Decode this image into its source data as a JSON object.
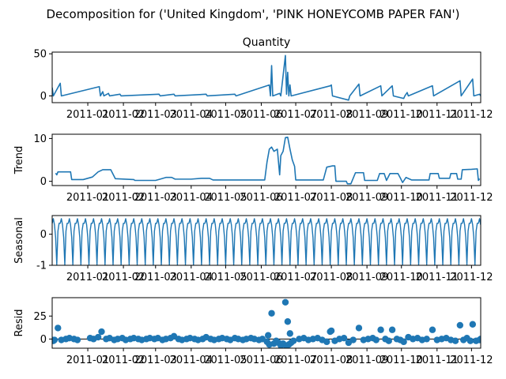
{
  "figure": {
    "suptitle": "Decomposition for ('United Kingdom', 'PINK  HONEYCOMB PAPER FAN')"
  },
  "colors": {
    "series": "#1f77b4",
    "axis": "#000000",
    "background": "#ffffff"
  },
  "x_axis": {
    "type": "date",
    "range": [
      "2010-12-01",
      "2011-12-09"
    ],
    "tick_dates": [
      "2011-01-01",
      "2011-02-01",
      "2011-03-01",
      "2011-04-01",
      "2011-05-01",
      "2011-06-01",
      "2011-07-01",
      "2011-08-01",
      "2011-09-01",
      "2011-10-01",
      "2011-11-01",
      "2011-12-01"
    ],
    "tick_labels": [
      "2011-01",
      "2011-02",
      "2011-03",
      "2011-04",
      "2011-05",
      "2011-06",
      "2011-07",
      "2011-08",
      "2011-09",
      "2011-10",
      "2011-11",
      "2011-12"
    ]
  },
  "chart_data": [
    {
      "type": "line",
      "title": "Quantity",
      "ylabel": "",
      "ylim": [
        -8,
        52
      ],
      "yticks": [
        0,
        50
      ],
      "grid": false,
      "baseline": 0,
      "points": [
        [
          "2010-12-01",
          10
        ],
        [
          "2010-12-02",
          0
        ],
        [
          "2010-12-08",
          15
        ],
        [
          "2010-12-09",
          0
        ],
        [
          "2011-01-11",
          11
        ],
        [
          "2011-01-12",
          0
        ],
        [
          "2011-01-14",
          5
        ],
        [
          "2011-01-15",
          0
        ],
        [
          "2011-01-19",
          3
        ],
        [
          "2011-01-20",
          0
        ],
        [
          "2011-01-29",
          2
        ],
        [
          "2011-01-30",
          0
        ],
        [
          "2011-03-04",
          2
        ],
        [
          "2011-03-05",
          0
        ],
        [
          "2011-03-17",
          2
        ],
        [
          "2011-03-18",
          0
        ],
        [
          "2011-04-14",
          2
        ],
        [
          "2011-04-15",
          0
        ],
        [
          "2011-05-09",
          2
        ],
        [
          "2011-05-10",
          0
        ],
        [
          "2011-06-08",
          13
        ],
        [
          "2011-06-09",
          0
        ],
        [
          "2011-06-10",
          36
        ],
        [
          "2011-06-11",
          0
        ],
        [
          "2011-06-17",
          3
        ],
        [
          "2011-06-18",
          0
        ],
        [
          "2011-06-22",
          48
        ],
        [
          "2011-06-23",
          2
        ],
        [
          "2011-06-24",
          28
        ],
        [
          "2011-06-25",
          0
        ],
        [
          "2011-06-26",
          13
        ],
        [
          "2011-06-27",
          0
        ],
        [
          "2011-07-31",
          12
        ],
        [
          "2011-08-01",
          13
        ],
        [
          "2011-08-02",
          0
        ],
        [
          "2011-08-16",
          -5
        ],
        [
          "2011-08-17",
          0
        ],
        [
          "2011-08-25",
          14
        ],
        [
          "2011-08-26",
          0
        ],
        [
          "2011-09-13",
          12
        ],
        [
          "2011-09-14",
          0
        ],
        [
          "2011-09-23",
          12
        ],
        [
          "2011-09-24",
          0
        ],
        [
          "2011-10-03",
          -3
        ],
        [
          "2011-10-04",
          0
        ],
        [
          "2011-10-06",
          4
        ],
        [
          "2011-10-07",
          0
        ],
        [
          "2011-10-28",
          12
        ],
        [
          "2011-10-29",
          0
        ],
        [
          "2011-11-21",
          18
        ],
        [
          "2011-11-22",
          0
        ],
        [
          "2011-12-02",
          20
        ],
        [
          "2011-12-03",
          0
        ],
        [
          "2011-12-08",
          2
        ],
        [
          "2011-12-09",
          0
        ]
      ]
    },
    {
      "type": "line",
      "title": "",
      "ylabel": "Trend",
      "ylim": [
        -1,
        11
      ],
      "yticks": [
        0,
        10
      ],
      "grid": false,
      "points": [
        [
          "2010-12-04",
          1.9
        ],
        [
          "2010-12-05",
          1.5
        ],
        [
          "2010-12-06",
          2.2
        ],
        [
          "2010-12-17",
          2.2
        ],
        [
          "2010-12-18",
          0.4
        ],
        [
          "2010-12-28",
          0.4
        ],
        [
          "2011-01-05",
          1.0
        ],
        [
          "2011-01-10",
          2.2
        ],
        [
          "2011-01-14",
          2.7
        ],
        [
          "2011-01-21",
          2.7
        ],
        [
          "2011-01-25",
          0.6
        ],
        [
          "2011-02-10",
          0.4
        ],
        [
          "2011-02-11",
          0.2
        ],
        [
          "2011-03-01",
          0.2
        ],
        [
          "2011-03-05",
          0.5
        ],
        [
          "2011-03-10",
          0.9
        ],
        [
          "2011-03-15",
          0.9
        ],
        [
          "2011-03-18",
          0.5
        ],
        [
          "2011-04-01",
          0.5
        ],
        [
          "2011-04-10",
          0.7
        ],
        [
          "2011-04-17",
          0.7
        ],
        [
          "2011-04-20",
          0.3
        ],
        [
          "2011-05-15",
          0.3
        ],
        [
          "2011-05-25",
          0.3
        ],
        [
          "2011-06-04",
          0.3
        ],
        [
          "2011-06-06",
          4.5
        ],
        [
          "2011-06-08",
          7.5
        ],
        [
          "2011-06-10",
          8.0
        ],
        [
          "2011-06-12",
          7.0
        ],
        [
          "2011-06-15",
          7.5
        ],
        [
          "2011-06-17",
          1.5
        ],
        [
          "2011-06-18",
          6.0
        ],
        [
          "2011-06-20",
          7.0
        ],
        [
          "2011-06-22",
          10.2
        ],
        [
          "2011-06-24",
          10.3
        ],
        [
          "2011-06-26",
          7.5
        ],
        [
          "2011-06-28",
          5.0
        ],
        [
          "2011-06-30",
          3.5
        ],
        [
          "2011-07-01",
          0.3
        ],
        [
          "2011-07-25",
          0.3
        ],
        [
          "2011-07-28",
          3.3
        ],
        [
          "2011-08-02",
          3.6
        ],
        [
          "2011-08-04",
          3.6
        ],
        [
          "2011-08-05",
          0.0
        ],
        [
          "2011-08-14",
          0.0
        ],
        [
          "2011-08-15",
          -0.6
        ],
        [
          "2011-08-18",
          -0.6
        ],
        [
          "2011-08-22",
          2.0
        ],
        [
          "2011-08-29",
          2.0
        ],
        [
          "2011-08-30",
          0.2
        ],
        [
          "2011-09-10",
          0.2
        ],
        [
          "2011-09-12",
          1.8
        ],
        [
          "2011-09-16",
          1.8
        ],
        [
          "2011-09-18",
          0.2
        ],
        [
          "2011-09-21",
          1.8
        ],
        [
          "2011-09-28",
          1.8
        ],
        [
          "2011-09-30",
          0.8
        ],
        [
          "2011-10-02",
          -0.3
        ],
        [
          "2011-10-05",
          0.9
        ],
        [
          "2011-10-10",
          0.3
        ],
        [
          "2011-10-25",
          0.3
        ],
        [
          "2011-10-26",
          1.8
        ],
        [
          "2011-11-02",
          1.8
        ],
        [
          "2011-11-03",
          0.7
        ],
        [
          "2011-11-12",
          0.7
        ],
        [
          "2011-11-13",
          1.8
        ],
        [
          "2011-11-18",
          1.8
        ],
        [
          "2011-11-19",
          0.5
        ],
        [
          "2011-11-22",
          0.5
        ],
        [
          "2011-11-23",
          2.7
        ],
        [
          "2011-12-01",
          2.8
        ],
        [
          "2011-12-06",
          2.9
        ],
        [
          "2011-12-07",
          0.2
        ],
        [
          "2011-12-08",
          0.6
        ]
      ]
    },
    {
      "type": "line",
      "title": "",
      "ylabel": "Seasonal",
      "ylim": [
        -1.0,
        0.6
      ],
      "yticks": [
        -1,
        0
      ],
      "grid": false,
      "start_date": "2010-12-01",
      "end_date": "2011-12-09",
      "period_days": 7,
      "seasonal_pattern": [
        0.35,
        0.5,
        0.3,
        -0.1,
        -0.98,
        0.1,
        0.35
      ]
    },
    {
      "type": "scatter",
      "title": "",
      "ylabel": "Resid",
      "ylim": [
        -10,
        45
      ],
      "yticks": [
        0,
        25
      ],
      "grid": false,
      "baseline": 0,
      "points": [
        [
          "2010-12-01",
          -1
        ],
        [
          "2010-12-02",
          -2
        ],
        [
          "2010-12-03",
          -1
        ],
        [
          "2010-12-06",
          12
        ],
        [
          "2010-12-09",
          -1
        ],
        [
          "2010-12-13",
          0
        ],
        [
          "2010-12-16",
          1
        ],
        [
          "2010-12-20",
          0
        ],
        [
          "2010-12-23",
          -1
        ],
        [
          "2011-01-03",
          1
        ],
        [
          "2011-01-06",
          0
        ],
        [
          "2011-01-10",
          2
        ],
        [
          "2011-01-13",
          8
        ],
        [
          "2011-01-17",
          0
        ],
        [
          "2011-01-20",
          1
        ],
        [
          "2011-01-24",
          -1
        ],
        [
          "2011-01-27",
          0
        ],
        [
          "2011-01-31",
          1
        ],
        [
          "2011-02-03",
          -1
        ],
        [
          "2011-02-07",
          0
        ],
        [
          "2011-02-10",
          1
        ],
        [
          "2011-02-14",
          0
        ],
        [
          "2011-02-17",
          -1
        ],
        [
          "2011-02-21",
          0
        ],
        [
          "2011-02-24",
          1
        ],
        [
          "2011-02-28",
          0
        ],
        [
          "2011-03-03",
          1
        ],
        [
          "2011-03-07",
          -1
        ],
        [
          "2011-03-10",
          0
        ],
        [
          "2011-03-14",
          1
        ],
        [
          "2011-03-17",
          3
        ],
        [
          "2011-03-21",
          0
        ],
        [
          "2011-03-24",
          -1
        ],
        [
          "2011-03-28",
          0
        ],
        [
          "2011-03-31",
          1
        ],
        [
          "2011-04-04",
          0
        ],
        [
          "2011-04-07",
          -1
        ],
        [
          "2011-04-11",
          0
        ],
        [
          "2011-04-14",
          2
        ],
        [
          "2011-04-18",
          0
        ],
        [
          "2011-04-21",
          -1
        ],
        [
          "2011-04-25",
          0
        ],
        [
          "2011-04-28",
          1
        ],
        [
          "2011-05-02",
          0
        ],
        [
          "2011-05-05",
          -1
        ],
        [
          "2011-05-09",
          1
        ],
        [
          "2011-05-12",
          0
        ],
        [
          "2011-05-16",
          -1
        ],
        [
          "2011-05-19",
          0
        ],
        [
          "2011-05-23",
          1
        ],
        [
          "2011-05-26",
          0
        ],
        [
          "2011-05-30",
          -1
        ],
        [
          "2011-06-02",
          0
        ],
        [
          "2011-06-06",
          -3
        ],
        [
          "2011-06-07",
          4
        ],
        [
          "2011-06-08",
          -6
        ],
        [
          "2011-06-10",
          28
        ],
        [
          "2011-06-12",
          -5
        ],
        [
          "2011-06-14",
          -2
        ],
        [
          "2011-06-16",
          -4
        ],
        [
          "2011-06-18",
          -7
        ],
        [
          "2011-06-20",
          -5
        ],
        [
          "2011-06-22",
          40
        ],
        [
          "2011-06-23",
          -8
        ],
        [
          "2011-06-24",
          19
        ],
        [
          "2011-06-25",
          -6
        ],
        [
          "2011-06-26",
          6
        ],
        [
          "2011-06-27",
          -4
        ],
        [
          "2011-06-29",
          -2
        ],
        [
          "2011-07-04",
          0
        ],
        [
          "2011-07-08",
          1
        ],
        [
          "2011-07-12",
          -1
        ],
        [
          "2011-07-16",
          0
        ],
        [
          "2011-07-20",
          1
        ],
        [
          "2011-07-24",
          -1
        ],
        [
          "2011-07-28",
          -3
        ],
        [
          "2011-07-31",
          8
        ],
        [
          "2011-08-01",
          9
        ],
        [
          "2011-08-04",
          -2
        ],
        [
          "2011-08-08",
          0
        ],
        [
          "2011-08-12",
          1
        ],
        [
          "2011-08-16",
          -4
        ],
        [
          "2011-08-20",
          -1
        ],
        [
          "2011-08-25",
          12
        ],
        [
          "2011-08-29",
          -1
        ],
        [
          "2011-09-02",
          0
        ],
        [
          "2011-09-06",
          1
        ],
        [
          "2011-09-09",
          -1
        ],
        [
          "2011-09-13",
          10
        ],
        [
          "2011-09-17",
          0
        ],
        [
          "2011-09-20",
          -2
        ],
        [
          "2011-09-23",
          10
        ],
        [
          "2011-09-27",
          0
        ],
        [
          "2011-09-30",
          -1
        ],
        [
          "2011-10-03",
          -3
        ],
        [
          "2011-10-07",
          2
        ],
        [
          "2011-10-11",
          0
        ],
        [
          "2011-10-15",
          1
        ],
        [
          "2011-10-19",
          -1
        ],
        [
          "2011-10-23",
          0
        ],
        [
          "2011-10-28",
          10
        ],
        [
          "2011-11-01",
          -1
        ],
        [
          "2011-11-05",
          0
        ],
        [
          "2011-11-09",
          1
        ],
        [
          "2011-11-13",
          -1
        ],
        [
          "2011-11-17",
          -2
        ],
        [
          "2011-11-21",
          15
        ],
        [
          "2011-11-24",
          -1
        ],
        [
          "2011-11-27",
          1
        ],
        [
          "2011-11-30",
          -2
        ],
        [
          "2011-12-02",
          16
        ],
        [
          "2011-12-05",
          -2
        ],
        [
          "2011-12-08",
          -1
        ],
        [
          "2011-12-09",
          0
        ]
      ]
    }
  ]
}
